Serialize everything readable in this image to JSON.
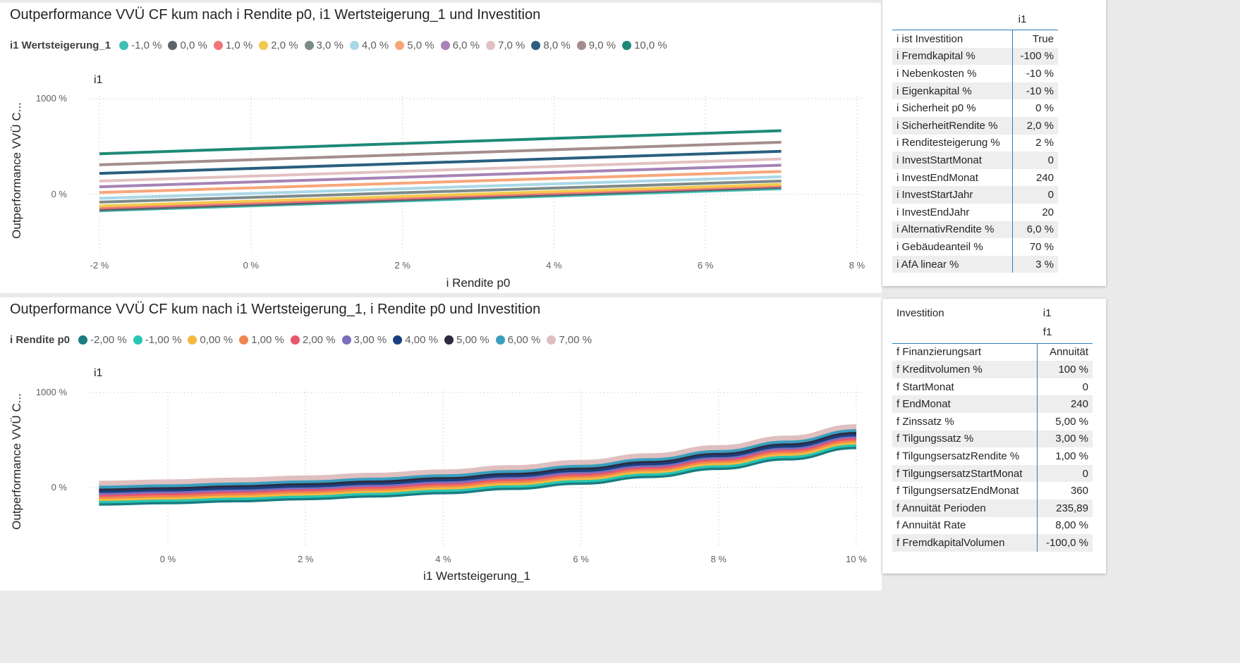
{
  "charts": {
    "top": {
      "title": "Outperformance VVÜ CF kum nach i Rendite p0, i1 Wertsteigerung_1 und Investition",
      "legend_title": "i1 Wertsteigerung_1",
      "small_multiple_label": "i1",
      "ylabel": "Outperformance VVÜ C...",
      "xlabel": "i Rendite p0",
      "x_ticks": [
        "-2 %",
        "0 %",
        "2 %",
        "4 %",
        "6 %",
        "8 %"
      ],
      "y_ticks": [
        "1000 %",
        "0 %"
      ]
    },
    "bottom": {
      "title": "Outperformance VVÜ CF kum nach i1 Wertsteigerung_1, i Rendite p0 und Investition",
      "legend_title": "i Rendite p0",
      "small_multiple_label": "i1",
      "ylabel": "Outperformance VVÜ C...",
      "xlabel": "i1 Wertsteigerung_1",
      "x_ticks": [
        "0 %",
        "2 %",
        "4 %",
        "6 %",
        "8 %",
        "10 %"
      ],
      "y_ticks": [
        "1000 %",
        "0 %"
      ]
    }
  },
  "chart_data": [
    {
      "type": "line",
      "title": "Outperformance VVÜ CF kum nach i Rendite p0, i1 Wertsteigerung_1 und Investition",
      "xlabel": "i Rendite p0",
      "ylabel": "Outperformance VVÜ C...",
      "xlim": [
        -2,
        8
      ],
      "ylim": [
        -250,
        1000
      ],
      "grid": true,
      "legend_position": "top",
      "x": [
        -2,
        7
      ],
      "series": [
        {
          "name": "-1,0 %",
          "color": "#3fbfb3",
          "values": [
            -170,
            60
          ]
        },
        {
          "name": "0,0 %",
          "color": "#5b6469",
          "values": [
            -160,
            75
          ]
        },
        {
          "name": "1,0 %",
          "color": "#f1767a",
          "values": [
            -140,
            90
          ]
        },
        {
          "name": "2,0 %",
          "color": "#f2c94c",
          "values": [
            -120,
            105
          ]
        },
        {
          "name": "3,0 %",
          "color": "#7d8a8a",
          "values": [
            -80,
            140
          ]
        },
        {
          "name": "4,0 %",
          "color": "#a9d8e6",
          "values": [
            -40,
            185
          ]
        },
        {
          "name": "5,0 %",
          "color": "#f7a67a",
          "values": [
            20,
            240
          ]
        },
        {
          "name": "6,0 %",
          "color": "#a583b5",
          "values": [
            80,
            305
          ]
        },
        {
          "name": "7,0 %",
          "color": "#e3c1c1",
          "values": [
            140,
            370
          ]
        },
        {
          "name": "8,0 %",
          "color": "#2a5f80",
          "values": [
            220,
            450
          ]
        },
        {
          "name": "9,0 %",
          "color": "#a58d8d",
          "values": [
            310,
            545
          ]
        },
        {
          "name": "10,0 %",
          "color": "#1d8a77",
          "values": [
            425,
            665
          ]
        }
      ]
    },
    {
      "type": "line",
      "title": "Outperformance VVÜ CF kum nach i1 Wertsteigerung_1, i Rendite p0 und Investition",
      "xlabel": "i1 Wertsteigerung_1",
      "ylabel": "Outperformance VVÜ C...",
      "xlim": [
        -1,
        10
      ],
      "ylim": [
        -250,
        1000
      ],
      "grid": true,
      "legend_position": "top",
      "x": [
        -1,
        0,
        1,
        2,
        3,
        4,
        5,
        6,
        7,
        8,
        9,
        10
      ],
      "series": [
        {
          "name": "-2,00 %",
          "color": "#197c80",
          "values": [
            -165,
            -150,
            -130,
            -108,
            -80,
            -45,
            0,
            55,
            125,
            210,
            310,
            430
          ]
        },
        {
          "name": "-1,00 %",
          "color": "#27c7b2",
          "values": [
            -140,
            -125,
            -105,
            -83,
            -55,
            -20,
            25,
            80,
            150,
            235,
            335,
            455
          ]
        },
        {
          "name": "0,00 %",
          "color": "#f6b83f",
          "values": [
            -115,
            -100,
            -80,
            -58,
            -30,
            5,
            50,
            105,
            175,
            260,
            360,
            480
          ]
        },
        {
          "name": "1,00 %",
          "color": "#f0864f",
          "values": [
            -92,
            -77,
            -57,
            -35,
            -7,
            28,
            73,
            128,
            198,
            283,
            383,
            503
          ]
        },
        {
          "name": "2,00 %",
          "color": "#e8566d",
          "values": [
            -70,
            -55,
            -35,
            -13,
            15,
            50,
            95,
            150,
            220,
            305,
            405,
            525
          ]
        },
        {
          "name": "3,00 %",
          "color": "#7a6fbe",
          "values": [
            -50,
            -35,
            -15,
            7,
            35,
            70,
            115,
            170,
            240,
            325,
            425,
            545
          ]
        },
        {
          "name": "4,00 %",
          "color": "#1a3f7e",
          "values": [
            -30,
            -15,
            5,
            27,
            55,
            90,
            135,
            190,
            260,
            345,
            445,
            565
          ]
        },
        {
          "name": "5,00 %",
          "color": "#2d2b3f",
          "values": [
            -5,
            10,
            30,
            52,
            80,
            115,
            160,
            215,
            285,
            370,
            470,
            590
          ]
        },
        {
          "name": "6,00 %",
          "color": "#3a9fbf",
          "values": [
            15,
            30,
            50,
            72,
            100,
            135,
            180,
            235,
            305,
            390,
            490,
            610
          ]
        },
        {
          "name": "7,00 %",
          "color": "#dfbfbf",
          "values": [
            45,
            60,
            80,
            102,
            130,
            165,
            210,
            265,
            335,
            420,
            520,
            640
          ]
        }
      ]
    }
  ],
  "tables": {
    "t1": {
      "header": "i1",
      "rows": [
        {
          "label": "i ist Investition",
          "value": "True"
        },
        {
          "label": "i Fremdkapital %",
          "value": "-100 %"
        },
        {
          "label": "i Nebenkosten %",
          "value": "-10 %"
        },
        {
          "label": "i Eigenkapital %",
          "value": "-10 %"
        },
        {
          "label": "i Sicherheit p0 %",
          "value": "0 %"
        },
        {
          "label": "i SicherheitRendite %",
          "value": "2,0 %"
        },
        {
          "label": "i Renditesteigerung %",
          "value": "2 %"
        },
        {
          "label": "i InvestStartMonat",
          "value": "0"
        },
        {
          "label": "i InvestEndMonat",
          "value": "240"
        },
        {
          "label": "i InvestStartJahr",
          "value": "0"
        },
        {
          "label": "i InvestEndJahr",
          "value": "20"
        },
        {
          "label": "i AlternativRendite %",
          "value": "6,0 %"
        },
        {
          "label": "i Gebäudeanteil %",
          "value": "70 %"
        },
        {
          "label": "i AfA linear %",
          "value": "3 %"
        }
      ]
    },
    "t2": {
      "header_left": "Investition",
      "header_right": "i1",
      "header_right2": "f1",
      "rows": [
        {
          "label": "f Finanzierungsart",
          "value": "Annuität"
        },
        {
          "label": "f Kreditvolumen %",
          "value": "100 %"
        },
        {
          "label": "f StartMonat",
          "value": "0"
        },
        {
          "label": "f EndMonat",
          "value": "240"
        },
        {
          "label": "f Zinssatz %",
          "value": "5,00 %"
        },
        {
          "label": "f Tilgungssatz %",
          "value": "3,00 %"
        },
        {
          "label": "f TilgungsersatzRendite %",
          "value": "1,00 %"
        },
        {
          "label": "f TilgungsersatzStartMonat",
          "value": "0"
        },
        {
          "label": "f TilgungsersatzEndMonat",
          "value": "360"
        },
        {
          "label": "f Annuität Perioden",
          "value": "235,89"
        },
        {
          "label": "f Annuität Rate",
          "value": "8,00 %"
        },
        {
          "label": "f FremdkapitalVolumen",
          "value": "-100,0 %"
        }
      ]
    }
  }
}
